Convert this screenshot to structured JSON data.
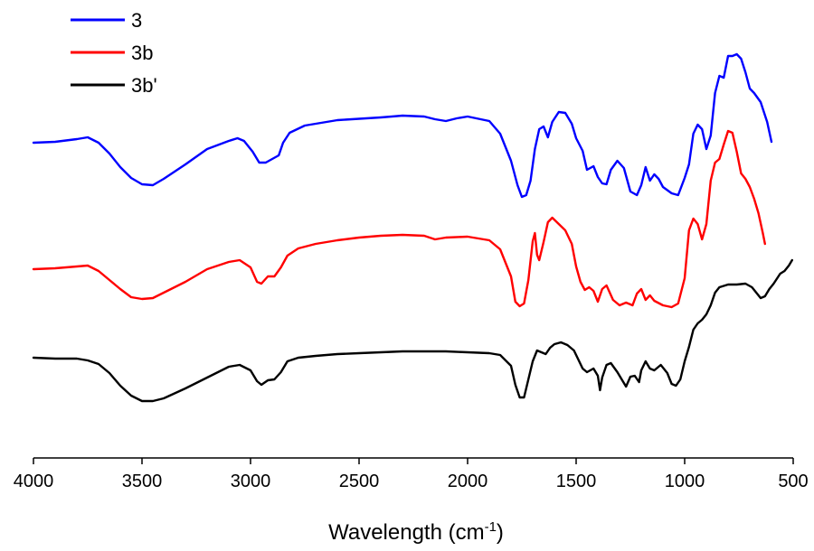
{
  "chart_data": {
    "type": "line",
    "title": "",
    "xlabel": "Wavelength (cm",
    "xlabel_sup": "-1",
    "xlabel_close": ")",
    "ylabel": "",
    "xlim": [
      4000,
      500
    ],
    "x_reversed": true,
    "y_axis_shown": false,
    "grid": false,
    "legend_position": "top-left",
    "x_ticks": [
      4000,
      3500,
      3000,
      2500,
      2000,
      1500,
      1000,
      500
    ],
    "x_tick_labels": [
      "4000",
      "3500",
      "3000",
      "2500",
      "2000",
      "1500",
      "1000",
      "500"
    ],
    "series": [
      {
        "name": "3",
        "color": "#0000ff",
        "points": [
          [
            4000,
            158
          ],
          [
            3900,
            157
          ],
          [
            3800,
            154
          ],
          [
            3750,
            152
          ],
          [
            3700,
            158
          ],
          [
            3650,
            170
          ],
          [
            3600,
            185
          ],
          [
            3550,
            197
          ],
          [
            3500,
            204
          ],
          [
            3450,
            205
          ],
          [
            3400,
            198
          ],
          [
            3300,
            182
          ],
          [
            3200,
            165
          ],
          [
            3100,
            156
          ],
          [
            3060,
            153
          ],
          [
            3030,
            156
          ],
          [
            2990,
            168
          ],
          [
            2960,
            180
          ],
          [
            2930,
            180
          ],
          [
            2900,
            176
          ],
          [
            2870,
            172
          ],
          [
            2850,
            158
          ],
          [
            2820,
            147
          ],
          [
            2750,
            139
          ],
          [
            2600,
            133
          ],
          [
            2400,
            130
          ],
          [
            2300,
            128
          ],
          [
            2200,
            129
          ],
          [
            2150,
            132
          ],
          [
            2100,
            134
          ],
          [
            2050,
            131
          ],
          [
            2000,
            129
          ],
          [
            1900,
            134
          ],
          [
            1850,
            148
          ],
          [
            1800,
            178
          ],
          [
            1770,
            205
          ],
          [
            1750,
            218
          ],
          [
            1730,
            216
          ],
          [
            1710,
            200
          ],
          [
            1690,
            165
          ],
          [
            1670,
            143
          ],
          [
            1650,
            140
          ],
          [
            1630,
            152
          ],
          [
            1610,
            135
          ],
          [
            1580,
            124
          ],
          [
            1550,
            125
          ],
          [
            1520,
            137
          ],
          [
            1500,
            153
          ],
          [
            1470,
            167
          ],
          [
            1450,
            188
          ],
          [
            1420,
            184
          ],
          [
            1400,
            196
          ],
          [
            1380,
            203
          ],
          [
            1360,
            204
          ],
          [
            1340,
            188
          ],
          [
            1310,
            178
          ],
          [
            1280,
            186
          ],
          [
            1250,
            212
          ],
          [
            1220,
            216
          ],
          [
            1200,
            205
          ],
          [
            1180,
            185
          ],
          [
            1160,
            200
          ],
          [
            1140,
            193
          ],
          [
            1120,
            198
          ],
          [
            1100,
            207
          ],
          [
            1060,
            214
          ],
          [
            1030,
            216
          ],
          [
            1000,
            197
          ],
          [
            980,
            182
          ],
          [
            960,
            148
          ],
          [
            940,
            138
          ],
          [
            920,
            143
          ],
          [
            900,
            165
          ],
          [
            880,
            150
          ],
          [
            860,
            103
          ],
          [
            840,
            84
          ],
          [
            820,
            86
          ],
          [
            800,
            62
          ],
          [
            780,
            62
          ],
          [
            760,
            60
          ],
          [
            740,
            65
          ],
          [
            720,
            80
          ],
          [
            700,
            98
          ],
          [
            680,
            103
          ],
          [
            650,
            113
          ],
          [
            620,
            135
          ],
          [
            600,
            157
          ]
        ]
      },
      {
        "name": "3b",
        "color": "#ff0000",
        "points": [
          [
            4000,
            298
          ],
          [
            3900,
            297
          ],
          [
            3800,
            295
          ],
          [
            3750,
            294
          ],
          [
            3700,
            300
          ],
          [
            3650,
            310
          ],
          [
            3600,
            320
          ],
          [
            3550,
            329
          ],
          [
            3500,
            331
          ],
          [
            3450,
            330
          ],
          [
            3400,
            324
          ],
          [
            3300,
            312
          ],
          [
            3200,
            298
          ],
          [
            3100,
            290
          ],
          [
            3050,
            288
          ],
          [
            3000,
            296
          ],
          [
            2970,
            312
          ],
          [
            2950,
            314
          ],
          [
            2920,
            306
          ],
          [
            2890,
            306
          ],
          [
            2860,
            296
          ],
          [
            2830,
            283
          ],
          [
            2780,
            275
          ],
          [
            2700,
            270
          ],
          [
            2600,
            266
          ],
          [
            2500,
            263
          ],
          [
            2400,
            261
          ],
          [
            2300,
            260
          ],
          [
            2200,
            261
          ],
          [
            2150,
            265
          ],
          [
            2100,
            263
          ],
          [
            2000,
            262
          ],
          [
            1900,
            266
          ],
          [
            1850,
            276
          ],
          [
            1800,
            306
          ],
          [
            1780,
            334
          ],
          [
            1760,
            339
          ],
          [
            1740,
            336
          ],
          [
            1720,
            310
          ],
          [
            1700,
            267
          ],
          [
            1690,
            258
          ],
          [
            1680,
            282
          ],
          [
            1670,
            288
          ],
          [
            1650,
            268
          ],
          [
            1630,
            246
          ],
          [
            1610,
            241
          ],
          [
            1580,
            248
          ],
          [
            1550,
            255
          ],
          [
            1520,
            270
          ],
          [
            1500,
            295
          ],
          [
            1480,
            312
          ],
          [
            1460,
            321
          ],
          [
            1440,
            318
          ],
          [
            1420,
            322
          ],
          [
            1400,
            334
          ],
          [
            1380,
            320
          ],
          [
            1360,
            316
          ],
          [
            1330,
            332
          ],
          [
            1300,
            338
          ],
          [
            1270,
            335
          ],
          [
            1240,
            338
          ],
          [
            1220,
            325
          ],
          [
            1200,
            320
          ],
          [
            1180,
            332
          ],
          [
            1160,
            327
          ],
          [
            1140,
            333
          ],
          [
            1100,
            338
          ],
          [
            1060,
            340
          ],
          [
            1030,
            336
          ],
          [
            1000,
            308
          ],
          [
            980,
            255
          ],
          [
            960,
            242
          ],
          [
            940,
            248
          ],
          [
            920,
            265
          ],
          [
            900,
            248
          ],
          [
            880,
            200
          ],
          [
            860,
            180
          ],
          [
            840,
            176
          ],
          [
            820,
            160
          ],
          [
            800,
            145
          ],
          [
            780,
            147
          ],
          [
            760,
            168
          ],
          [
            740,
            192
          ],
          [
            720,
            198
          ],
          [
            700,
            207
          ],
          [
            680,
            220
          ],
          [
            660,
            236
          ],
          [
            640,
            258
          ],
          [
            630,
            270
          ]
        ]
      },
      {
        "name": "3b'",
        "color": "#000000",
        "points": [
          [
            4000,
            396
          ],
          [
            3900,
            397
          ],
          [
            3800,
            397
          ],
          [
            3750,
            399
          ],
          [
            3700,
            403
          ],
          [
            3650,
            413
          ],
          [
            3600,
            427
          ],
          [
            3550,
            438
          ],
          [
            3500,
            444
          ],
          [
            3450,
            444
          ],
          [
            3400,
            441
          ],
          [
            3300,
            430
          ],
          [
            3200,
            418
          ],
          [
            3100,
            406
          ],
          [
            3050,
            404
          ],
          [
            3000,
            410
          ],
          [
            2970,
            422
          ],
          [
            2950,
            426
          ],
          [
            2920,
            421
          ],
          [
            2890,
            420
          ],
          [
            2860,
            412
          ],
          [
            2830,
            400
          ],
          [
            2780,
            396
          ],
          [
            2700,
            394
          ],
          [
            2600,
            392
          ],
          [
            2500,
            391
          ],
          [
            2400,
            390
          ],
          [
            2300,
            389
          ],
          [
            2200,
            389
          ],
          [
            2100,
            389
          ],
          [
            2000,
            390
          ],
          [
            1900,
            391
          ],
          [
            1850,
            393
          ],
          [
            1800,
            405
          ],
          [
            1780,
            426
          ],
          [
            1760,
            440
          ],
          [
            1740,
            440
          ],
          [
            1720,
            420
          ],
          [
            1700,
            400
          ],
          [
            1680,
            388
          ],
          [
            1660,
            390
          ],
          [
            1640,
            392
          ],
          [
            1620,
            385
          ],
          [
            1600,
            381
          ],
          [
            1570,
            379
          ],
          [
            1540,
            382
          ],
          [
            1510,
            388
          ],
          [
            1490,
            398
          ],
          [
            1470,
            408
          ],
          [
            1450,
            412
          ],
          [
            1420,
            408
          ],
          [
            1400,
            416
          ],
          [
            1390,
            432
          ],
          [
            1380,
            418
          ],
          [
            1360,
            404
          ],
          [
            1340,
            402
          ],
          [
            1310,
            412
          ],
          [
            1290,
            420
          ],
          [
            1270,
            428
          ],
          [
            1250,
            417
          ],
          [
            1230,
            416
          ],
          [
            1210,
            423
          ],
          [
            1200,
            410
          ],
          [
            1180,
            400
          ],
          [
            1160,
            408
          ],
          [
            1140,
            410
          ],
          [
            1110,
            404
          ],
          [
            1080,
            413
          ],
          [
            1060,
            425
          ],
          [
            1040,
            427
          ],
          [
            1020,
            420
          ],
          [
            1000,
            400
          ],
          [
            980,
            384
          ],
          [
            960,
            365
          ],
          [
            940,
            358
          ],
          [
            920,
            354
          ],
          [
            900,
            348
          ],
          [
            880,
            338
          ],
          [
            860,
            324
          ],
          [
            840,
            318
          ],
          [
            800,
            315
          ],
          [
            760,
            315
          ],
          [
            720,
            314
          ],
          [
            690,
            318
          ],
          [
            670,
            324
          ],
          [
            650,
            330
          ],
          [
            630,
            328
          ],
          [
            610,
            320
          ],
          [
            590,
            314
          ],
          [
            560,
            303
          ],
          [
            540,
            300
          ],
          [
            520,
            294
          ],
          [
            505,
            288
          ]
        ]
      }
    ]
  }
}
